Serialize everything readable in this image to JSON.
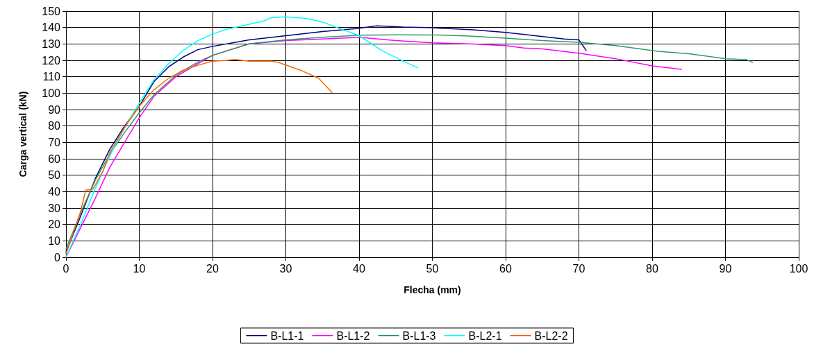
{
  "chart_data": {
    "type": "line",
    "xlabel": "Flecha (mm)",
    "ylabel": "Carga vertical (kN)",
    "xlim": [
      0,
      100
    ],
    "xticks": [
      0,
      10,
      20,
      30,
      40,
      50,
      60,
      70,
      80,
      90,
      100
    ],
    "ylim": [
      0,
      150
    ],
    "yticks": [
      0,
      10,
      20,
      30,
      40,
      50,
      60,
      70,
      80,
      90,
      100,
      110,
      120,
      130,
      140,
      150
    ],
    "grid": true,
    "legend": "bottom",
    "marker": "none",
    "line_style": "solid",
    "series": [
      {
        "name": "B-L1-1",
        "color": "#000080",
        "x": [
          0,
          2,
          4,
          6,
          8,
          10,
          12,
          14,
          16,
          18,
          20,
          25,
          30,
          35,
          40,
          42.4,
          46,
          49.4,
          55.6,
          60,
          64,
          68,
          70,
          71
        ],
        "values": [
          3,
          25,
          48,
          66,
          80,
          92,
          107,
          116,
          122,
          126.5,
          128.5,
          132.5,
          135,
          137.5,
          139.5,
          141,
          140.3,
          140,
          138.6,
          137,
          135,
          133,
          132.5,
          126
        ]
      },
      {
        "name": "B-L1-2",
        "color": "#ff00ff",
        "x": [
          0,
          2,
          4,
          6,
          8,
          10,
          12,
          15,
          18,
          20,
          25,
          30,
          35,
          40,
          45,
          50,
          55,
          60,
          62.5,
          65,
          70,
          75,
          80,
          84
        ],
        "values": [
          0,
          18,
          36,
          55,
          70,
          85,
          98,
          110,
          118,
          123,
          130,
          132,
          133,
          134,
          132,
          130.7,
          130,
          129,
          127.5,
          127,
          124.3,
          121,
          116.6,
          114.5
        ]
      },
      {
        "name": "B-L1-3",
        "color": "#339966",
        "x": [
          0,
          2,
          4,
          6,
          8,
          10,
          12,
          15,
          18,
          20,
          25,
          30,
          35,
          40,
          45,
          51,
          55,
          60,
          65,
          70,
          75,
          80.8,
          85,
          90,
          92.9,
          93.7
        ],
        "values": [
          5,
          27,
          47,
          63,
          76,
          88,
          99,
          111,
          119,
          123,
          130,
          132.5,
          134,
          135.3,
          135.5,
          135.4,
          134.8,
          133.5,
          132,
          131,
          129,
          125.5,
          124,
          121,
          120.4,
          118.7
        ]
      },
      {
        "name": "B-L2-1",
        "color": "#00ffff",
        "x": [
          0,
          2,
          4,
          6,
          8,
          10,
          12,
          14,
          16,
          18,
          20,
          22,
          25,
          27,
          28,
          30,
          33,
          35.3,
          38.4,
          40,
          43.1,
          46,
          48
        ],
        "values": [
          0,
          20,
          42,
          62,
          79,
          94,
          108,
          118,
          126,
          132,
          136,
          139,
          142,
          144,
          146,
          146.5,
          145.5,
          142.8,
          137.7,
          135,
          126,
          119.5,
          115.5
        ]
      },
      {
        "name": "B-L2-2",
        "color": "#ff6600",
        "x": [
          0,
          1,
          2,
          2.7,
          3.6,
          4,
          5,
          6,
          8,
          10,
          12,
          14,
          16,
          18,
          20,
          22,
          23,
          25,
          28,
          29,
          32.1,
          34.5,
          36.3
        ],
        "values": [
          2,
          15,
          28,
          41,
          41.3,
          44,
          52,
          64,
          79,
          92,
          102,
          109,
          114,
          117,
          119.5,
          120,
          120.5,
          119.5,
          119.5,
          118.7,
          113.8,
          109,
          100.5
        ]
      }
    ]
  }
}
